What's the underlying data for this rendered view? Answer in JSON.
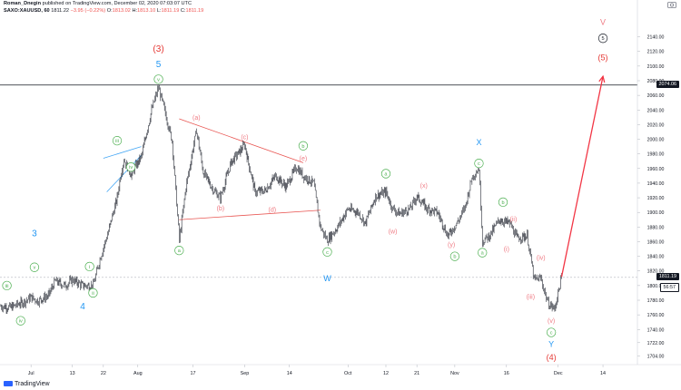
{
  "header": {
    "author": "Roman_Dnegin",
    "published_on": "published on TradingView.com, December 02, 2020 07:03:07 UTC",
    "symbol": "SAXO:XAUUSD, 60",
    "last": "1811.22",
    "change": "−3.95 (−0.22%)",
    "o_label": "O:",
    "o": "1813.02",
    "h_label": "H:",
    "h": "1813.10",
    "l_label": "L:",
    "l": "1811.19",
    "c_label": "C:",
    "c": "1811.19"
  },
  "footer": {
    "brand": "TradingView"
  },
  "colors": {
    "candle": "#131722",
    "hline": "#131722",
    "dashed": "#b2b5be",
    "green": "#4caf50",
    "blue": "#2196f3",
    "red": "#e53935",
    "pink": "#ef7b84",
    "arrow": "#f23645",
    "primary_v": "#f77b82"
  },
  "tags": [
    {
      "text": "2074.06",
      "price": 2074.06,
      "bg": "#131722",
      "fg": "#ffffff"
    },
    {
      "text": "1811.19",
      "price": 1811.19,
      "bg": "#131722",
      "fg": "#ffffff"
    },
    {
      "text": "56:57",
      "price": 1798,
      "bg": "#ffffff",
      "fg": "#131722"
    }
  ],
  "chart_data": {
    "type": "candlestick",
    "x_tick_labels": [
      "Jul",
      "13",
      "22",
      "Aug",
      "17",
      "Sep",
      "14",
      "Oct",
      "12",
      "21",
      "Nov",
      "16",
      "Dec",
      "14"
    ],
    "x_tick_dates": [
      "2020-07-01",
      "2020-07-13",
      "2020-07-22",
      "2020-08-01",
      "2020-08-17",
      "2020-09-01",
      "2020-09-14",
      "2020-10-01",
      "2020-10-12",
      "2020-10-21",
      "2020-11-01",
      "2020-11-16",
      "2020-12-01",
      "2020-12-14"
    ],
    "y_ticks": [
      1704,
      1722,
      1740,
      1760,
      1780,
      1800,
      1820,
      1840,
      1860,
      1880,
      1900,
      1920,
      1940,
      1960,
      1980,
      2000,
      2020,
      2040,
      2060,
      2080,
      2100,
      2120,
      2140
    ],
    "y_tick_labels": [
      "1704.00",
      "1722.00",
      "1740.00",
      "1760.00",
      "1780.00",
      "1800.00",
      "1820.00",
      "1840.00",
      "1860.00",
      "1880.00",
      "1900.00",
      "1920.00",
      "1940.00",
      "1960.00",
      "1980.00",
      "2000.00",
      "2020.00",
      "2040.00",
      "2060.00",
      "2080.00",
      "2100.00",
      "2120.00",
      "2140.00"
    ],
    "ylim": [
      1692,
      2168
    ],
    "xlim": [
      "2020-06-22",
      "2020-12-24"
    ],
    "path": [
      [
        "2020-06-22",
        1772
      ],
      [
        "2020-06-25",
        1770
      ],
      [
        "2020-06-29",
        1778
      ],
      [
        "2020-07-01",
        1784
      ],
      [
        "2020-07-03",
        1779
      ],
      [
        "2020-07-06",
        1786
      ],
      [
        "2020-07-08",
        1806
      ],
      [
        "2020-07-11",
        1800
      ],
      [
        "2020-07-13",
        1808
      ],
      [
        "2020-07-16",
        1800
      ],
      [
        "2020-07-19",
        1800
      ],
      [
        "2020-07-21",
        1836
      ],
      [
        "2020-07-23",
        1866
      ],
      [
        "2020-07-26",
        1920
      ],
      [
        "2020-07-27",
        1950
      ],
      [
        "2020-07-28",
        1972
      ],
      [
        "2020-07-30",
        1952
      ],
      [
        "2020-08-02",
        1976
      ],
      [
        "2020-08-05",
        2040
      ],
      [
        "2020-08-07",
        2070
      ],
      [
        "2020-08-09",
        2035
      ],
      [
        "2020-08-11",
        1998
      ],
      [
        "2020-08-13",
        1862
      ],
      [
        "2020-08-15",
        1935
      ],
      [
        "2020-08-18",
        2012
      ],
      [
        "2020-08-20",
        1955
      ],
      [
        "2020-08-23",
        1930
      ],
      [
        "2020-08-25",
        1920
      ],
      [
        "2020-08-28",
        1968
      ],
      [
        "2020-09-01",
        1992
      ],
      [
        "2020-09-04",
        1928
      ],
      [
        "2020-09-07",
        1930
      ],
      [
        "2020-09-10",
        1950
      ],
      [
        "2020-09-13",
        1935
      ],
      [
        "2020-09-16",
        1962
      ],
      [
        "2020-09-18",
        1950
      ],
      [
        "2020-09-21",
        1940
      ],
      [
        "2020-09-23",
        1880
      ],
      [
        "2020-09-25",
        1862
      ],
      [
        "2020-09-28",
        1880
      ],
      [
        "2020-10-01",
        1905
      ],
      [
        "2020-10-04",
        1900
      ],
      [
        "2020-10-06",
        1885
      ],
      [
        "2020-10-09",
        1922
      ],
      [
        "2020-10-12",
        1928
      ],
      [
        "2020-10-14",
        1905
      ],
      [
        "2020-10-16",
        1898
      ],
      [
        "2020-10-19",
        1905
      ],
      [
        "2020-10-21",
        1922
      ],
      [
        "2020-10-24",
        1905
      ],
      [
        "2020-10-27",
        1900
      ],
      [
        "2020-10-30",
        1868
      ],
      [
        "2020-11-02",
        1888
      ],
      [
        "2020-11-04",
        1908
      ],
      [
        "2020-11-06",
        1948
      ],
      [
        "2020-11-08",
        1960
      ],
      [
        "2020-11-09",
        1860
      ],
      [
        "2020-11-11",
        1868
      ],
      [
        "2020-11-14",
        1890
      ],
      [
        "2020-11-17",
        1885
      ],
      [
        "2020-11-19",
        1865
      ],
      [
        "2020-11-22",
        1868
      ],
      [
        "2020-11-24",
        1808
      ],
      [
        "2020-11-26",
        1810
      ],
      [
        "2020-11-28",
        1776
      ],
      [
        "2020-11-30",
        1768
      ],
      [
        "2020-12-02",
        1811.19
      ]
    ]
  },
  "annotations": {
    "waves": [
      {
        "t": "(3)",
        "c": "red",
        "d": "2020-08-07",
        "p": 2124,
        "sz": 10
      },
      {
        "t": "5",
        "c": "blue",
        "d": "2020-08-07",
        "p": 2103,
        "sz": 10
      },
      {
        "t": "v",
        "c": "green",
        "d": "2020-08-07",
        "p": 2082,
        "circ": true
      },
      {
        "t": "iii",
        "c": "green",
        "d": "2020-07-26",
        "p": 1998,
        "circ": true
      },
      {
        "t": "iv",
        "c": "green",
        "d": "2020-07-30",
        "p": 1962,
        "circ": true
      },
      {
        "t": "3",
        "c": "blue",
        "d": "2020-07-02",
        "p": 1872,
        "sz": 10
      },
      {
        "t": "v",
        "c": "green",
        "d": "2020-07-02",
        "p": 1825,
        "circ": true
      },
      {
        "t": "iii",
        "c": "green",
        "d": "2020-06-24",
        "p": 1800,
        "circ": true
      },
      {
        "t": "i",
        "c": "green",
        "d": "2020-07-18",
        "p": 1826,
        "circ": true
      },
      {
        "t": "ii",
        "c": "green",
        "d": "2020-07-19",
        "p": 1790,
        "circ": true
      },
      {
        "t": "4",
        "c": "blue",
        "d": "2020-07-16",
        "p": 1772,
        "sz": 10
      },
      {
        "t": "iv",
        "c": "green",
        "d": "2020-06-28",
        "p": 1752,
        "circ": true
      },
      {
        "t": "a",
        "c": "green",
        "d": "2020-08-13",
        "p": 1848,
        "circ": true
      },
      {
        "t": "(a)",
        "c": "pink",
        "d": "2020-08-18",
        "p": 2030
      },
      {
        "t": "(c)",
        "c": "pink",
        "d": "2020-09-01",
        "p": 2003
      },
      {
        "t": "b",
        "c": "green",
        "d": "2020-09-18",
        "p": 1991,
        "circ": true
      },
      {
        "t": "(e)",
        "c": "pink",
        "d": "2020-09-18",
        "p": 1974
      },
      {
        "t": "(b)",
        "c": "pink",
        "d": "2020-08-25",
        "p": 1906
      },
      {
        "t": "(d)",
        "c": "pink",
        "d": "2020-09-09",
        "p": 1904
      },
      {
        "t": "c",
        "c": "green",
        "d": "2020-09-25",
        "p": 1846,
        "circ": true
      },
      {
        "t": "W",
        "c": "blue",
        "d": "2020-09-25",
        "p": 1810,
        "sz": 9
      },
      {
        "t": "a",
        "c": "green",
        "d": "2020-10-12",
        "p": 1953,
        "circ": true
      },
      {
        "t": "(x)",
        "c": "pink",
        "d": "2020-10-23",
        "p": 1937
      },
      {
        "t": "(w)",
        "c": "pink",
        "d": "2020-10-14",
        "p": 1874
      },
      {
        "t": "(y)",
        "c": "pink",
        "d": "2020-10-31",
        "p": 1856
      },
      {
        "t": "b",
        "c": "green",
        "d": "2020-11-01",
        "p": 1840,
        "circ": true
      },
      {
        "t": "X",
        "c": "blue",
        "d": "2020-11-08",
        "p": 1996,
        "sz": 9
      },
      {
        "t": "c",
        "c": "green",
        "d": "2020-11-08",
        "p": 1967,
        "circ": true
      },
      {
        "t": "a",
        "c": "green",
        "d": "2020-11-09",
        "p": 1845,
        "circ": true
      },
      {
        "t": "b",
        "c": "green",
        "d": "2020-11-15",
        "p": 1914,
        "circ": true
      },
      {
        "t": "(ii)",
        "c": "pink",
        "d": "2020-11-18",
        "p": 1891
      },
      {
        "t": "(i)",
        "c": "pink",
        "d": "2020-11-16",
        "p": 1850
      },
      {
        "t": "(iv)",
        "c": "pink",
        "d": "2020-11-26",
        "p": 1838
      },
      {
        "t": "(iii)",
        "c": "pink",
        "d": "2020-11-23",
        "p": 1785
      },
      {
        "t": "(v)",
        "c": "pink",
        "d": "2020-11-29",
        "p": 1752
      },
      {
        "t": "c",
        "c": "green",
        "d": "2020-11-29",
        "p": 1736,
        "circ": true
      },
      {
        "t": "Y",
        "c": "blue",
        "d": "2020-11-29",
        "p": 1720,
        "sz": 9
      },
      {
        "t": "(4)",
        "c": "red",
        "d": "2020-11-29",
        "p": 1702,
        "sz": 9
      },
      {
        "t": "V",
        "c": "pink",
        "d": "2020-12-14",
        "p": 2160,
        "sz": 9
      },
      {
        "t": "5",
        "c": "black",
        "d": "2020-12-14",
        "p": 2138,
        "circ": true
      },
      {
        "t": "(5)",
        "c": "red",
        "d": "2020-12-14",
        "p": 2112,
        "sz": 9
      }
    ],
    "lines": [
      {
        "from": [
          "2020-07-22",
          1974
        ],
        "to": [
          "2020-08-02",
          1990
        ],
        "c": "blue"
      },
      {
        "from": [
          "2020-07-23",
          1928
        ],
        "to": [
          "2020-08-02",
          1978
        ],
        "c": "blue"
      },
      {
        "from": [
          "2020-08-13",
          2028
        ],
        "to": [
          "2020-09-18",
          1968
        ],
        "c": "red"
      },
      {
        "from": [
          "2020-08-13",
          1890
        ],
        "to": [
          "2020-09-23",
          1903
        ],
        "c": "red"
      }
    ],
    "arrow": {
      "from": [
        "2020-12-02",
        1812
      ],
      "to": [
        "2020-12-14",
        2086
      ]
    },
    "hline_price": 2074.06,
    "dashed_price": 1811.19
  }
}
